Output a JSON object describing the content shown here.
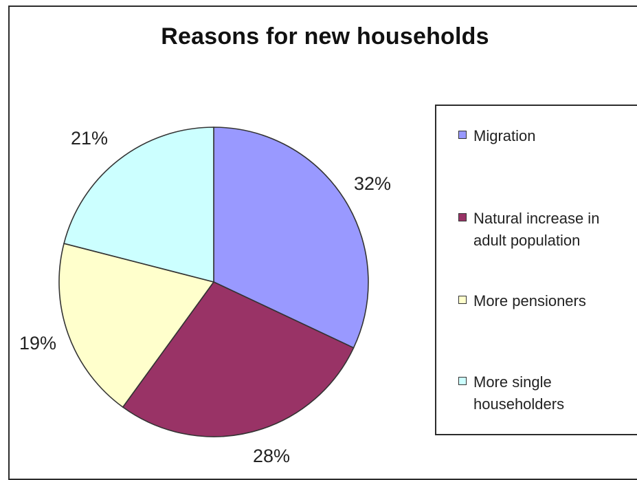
{
  "chart_data": {
    "type": "pie",
    "title": "Reasons for new households",
    "categories": [
      "Migration",
      "Natural increase in adult population",
      "More pensioners",
      "More single householders"
    ],
    "values": [
      32,
      28,
      19,
      21
    ],
    "value_labels": [
      "32%",
      "28%",
      "19%",
      "21%"
    ],
    "colors": [
      "#9999ff",
      "#993366",
      "#ffffcc",
      "#ccffff"
    ],
    "legend_position": "right",
    "start_angle": "12 o'clock",
    "direction": "clockwise"
  }
}
